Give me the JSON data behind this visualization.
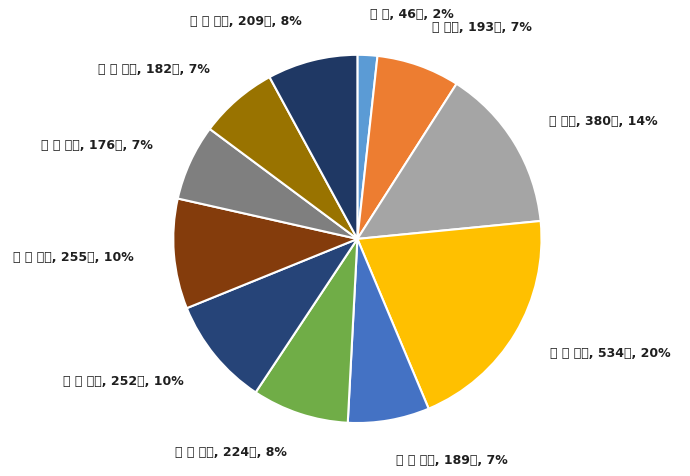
{
  "labels": [
    "０歳, 46人, 2%",
    "１歳～, 193人, 7%",
    "５歳～, 380人, 14%",
    "１０歳～, 534人, 20%",
    "２０歳～, 189人, 7%",
    "３０歳～, 224人, 8%",
    "４０歳～, 252人, 10%",
    "５０歳～, 255人, 10%",
    "６０歳～, 176人, 7%",
    "７０歳～, 182人, 7%",
    "８０歳～, 209人, 8%"
  ],
  "labels_display": [
    "０ 歳, 46人, 2%",
    "１ 歳～, 193人, 7%",
    "５ 歳～, 380人, 14%",
    "１ ０ 歳～, 534人, 20%",
    "２ ０ 歳～, 189人, 7%",
    "３ ０ 歳～, 224人, 8%",
    "４ ０ 歳～, 252人, 10%",
    "５ ０ 歳～, 255人, 10%",
    "６ ０ 歳～, 176人, 7%",
    "７ ０ 歳～, 182人, 7%",
    "８ ０ 歳～, 209人, 8%"
  ],
  "values": [
    46,
    193,
    380,
    534,
    189,
    224,
    252,
    255,
    176,
    182,
    209
  ],
  "colors": [
    "#5B9BD5",
    "#ED7D31",
    "#A5A5A5",
    "#FFC000",
    "#4472C4",
    "#70AD47",
    "#264478",
    "#843C0C",
    "#7F7F7F",
    "#997300",
    "#1F3864"
  ],
  "figsize": [
    6.9,
    4.76
  ],
  "dpi": 100,
  "startangle": 90,
  "label_fontsize": 9.0,
  "labeldistance": 1.22
}
